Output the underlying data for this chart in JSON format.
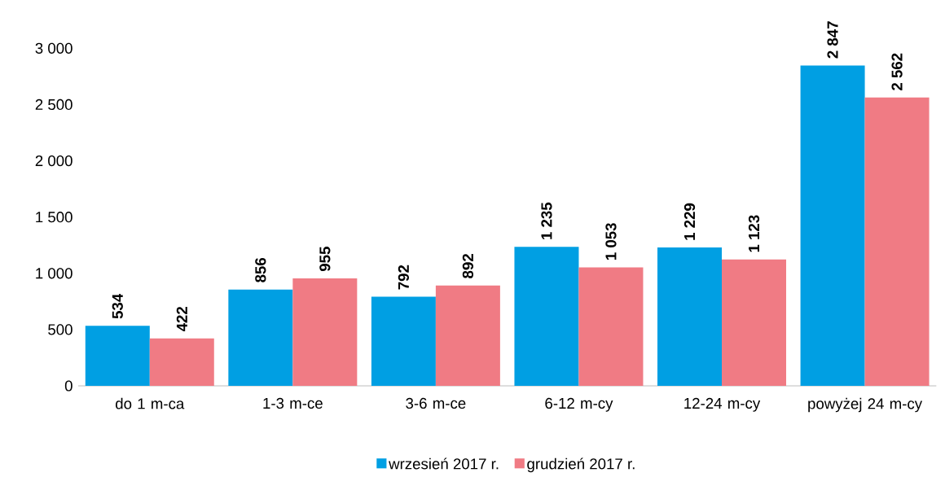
{
  "chart_data": {
    "type": "bar",
    "categories": [
      "do 1 m-ca",
      "1-3 m-ce",
      "3-6 m-ce",
      "6-12 m-cy",
      "12-24 m-cy",
      "powyżej 24 m-cy"
    ],
    "series": [
      {
        "name": "wrzesień 2017 r.",
        "color": "#009fe3",
        "values": [
          534,
          856,
          792,
          1235,
          1229,
          2847
        ],
        "value_labels": [
          "534",
          "856",
          "792",
          "1 235",
          "1 229",
          "2 847"
        ]
      },
      {
        "name": "grudzień 2017 r.",
        "color": "#f07b84",
        "values": [
          422,
          955,
          892,
          1053,
          1123,
          2562
        ],
        "value_labels": [
          "422",
          "955",
          "892",
          "1 053",
          "1 123",
          "2 562"
        ]
      }
    ],
    "ylim": [
      0,
      3000
    ],
    "yticks": [
      {
        "value": 0,
        "label": "0"
      },
      {
        "value": 500,
        "label": "500"
      },
      {
        "value": 1000,
        "label": "1 000"
      },
      {
        "value": 1500,
        "label": "1 500"
      },
      {
        "value": 2000,
        "label": "2 000"
      },
      {
        "value": 2500,
        "label": "2 500"
      },
      {
        "value": 3000,
        "label": "3 000"
      }
    ],
    "grid": false,
    "legend": "bottom"
  }
}
